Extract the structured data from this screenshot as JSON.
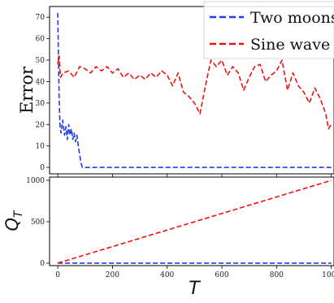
{
  "chart_data": [
    {
      "type": "line",
      "ylabel": "Error",
      "xlabel": "",
      "xlim": [
        -30,
        1010
      ],
      "ylim": [
        -3,
        75
      ],
      "yticks": [
        0,
        10,
        20,
        30,
        40,
        50,
        60,
        70
      ],
      "xticks": [
        0,
        200,
        400,
        600,
        800,
        1000
      ],
      "legend": {
        "position": "top-right",
        "entries": [
          "Two moons",
          "Sine wave"
        ]
      },
      "series": [
        {
          "name": "Two moons",
          "color": "#1f3fe0",
          "style": "dashed",
          "x": [
            0,
            2,
            5,
            8,
            12,
            18,
            25,
            30,
            35,
            40,
            45,
            50,
            55,
            60,
            65,
            70,
            75,
            80,
            85,
            90,
            95,
            100,
            200,
            400,
            600,
            800,
            1000
          ],
          "y": [
            72,
            55,
            32,
            20,
            16,
            22,
            15,
            19,
            13,
            20,
            15,
            18,
            13,
            16,
            12,
            15,
            10,
            6,
            2,
            0,
            0,
            0,
            0,
            0,
            0,
            0,
            0
          ]
        },
        {
          "name": "Sine wave",
          "color": "#ee1111",
          "style": "dashed",
          "x": [
            0,
            5,
            10,
            20,
            40,
            60,
            80,
            100,
            120,
            140,
            160,
            180,
            200,
            220,
            240,
            260,
            280,
            300,
            320,
            340,
            360,
            380,
            400,
            420,
            440,
            460,
            480,
            500,
            520,
            540,
            560,
            580,
            600,
            620,
            640,
            660,
            680,
            700,
            720,
            740,
            760,
            780,
            800,
            820,
            840,
            860,
            880,
            900,
            920,
            940,
            960,
            980,
            990,
            1000
          ],
          "y": [
            48,
            52,
            42,
            44,
            45,
            42,
            47,
            46,
            44,
            47,
            45,
            47,
            44,
            46,
            42,
            44,
            41,
            43,
            41,
            44,
            42,
            45,
            43,
            38,
            44,
            35,
            33,
            30,
            25,
            38,
            50,
            47,
            50,
            43,
            47,
            44,
            36,
            42,
            47,
            48,
            40,
            43,
            45,
            50,
            36,
            44,
            38,
            35,
            30,
            37,
            32,
            25,
            18,
            20
          ]
        }
      ]
    },
    {
      "type": "line",
      "ylabel": "Q_T",
      "xlabel": "T",
      "xlim": [
        -30,
        1010
      ],
      "ylim": [
        -30,
        1040
      ],
      "yticks": [
        0,
        500,
        1000
      ],
      "xticks": [
        0,
        200,
        400,
        600,
        800,
        1000
      ],
      "series": [
        {
          "name": "Two moons",
          "color": "#1f3fe0",
          "style": "dashed",
          "x": [
            0,
            1000
          ],
          "y": [
            0,
            0
          ]
        },
        {
          "name": "Sine wave",
          "color": "#ee1111",
          "style": "dashed",
          "x": [
            0,
            1000
          ],
          "y": [
            0,
            1000
          ]
        }
      ]
    }
  ]
}
